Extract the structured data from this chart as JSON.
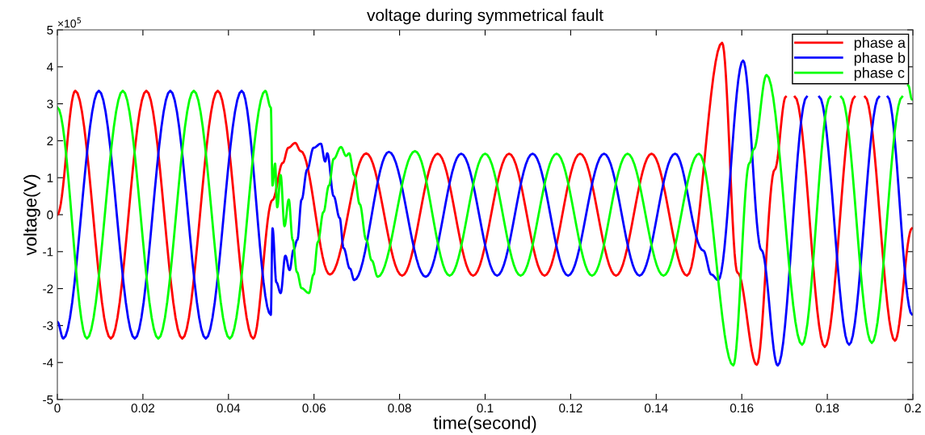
{
  "chart_data": {
    "type": "line",
    "title": "voltage during symmetrical fault",
    "xlabel": "time(second)",
    "ylabel": "voltage(V)",
    "annotations": [
      "×10$^{5}$"
    ],
    "xlim": [
      0,
      0.2
    ],
    "xticks": [
      0,
      0.02,
      0.04,
      0.06,
      0.08,
      0.1,
      0.12,
      0.14,
      0.16,
      0.18,
      0.2
    ],
    "ylim": [
      -5,
      5
    ],
    "yticks": [
      -5,
      -4,
      -3,
      -2,
      -1,
      0,
      1,
      2,
      3,
      4,
      5
    ],
    "grid": false,
    "legend": "top right",
    "marker": "none",
    "line_style": "solid",
    "series": [
      {
        "name": "phase a",
        "color": "#ff0000",
        "x": [
          0,
          0.0042,
          0.0125,
          0.0208,
          0.0292,
          0.0375,
          0.0458,
          0.0503,
          0.0527,
          0.054,
          0.0556,
          0.0569,
          0.0637,
          0.0722,
          0.0806,
          0.0889,
          0.0972,
          0.1056,
          0.1139,
          0.1222,
          0.1306,
          0.1389,
          0.1472,
          0.1554,
          0.159,
          0.1635,
          0.1677,
          0.1703,
          0.1713,
          0.1724,
          0.1794,
          0.1864,
          0.1876,
          0.1888,
          0.1958,
          0.1998
        ],
        "values": [
          0,
          3.35,
          -3.35,
          3.35,
          -3.35,
          3.35,
          -3.35,
          0.4,
          1.4,
          1.81,
          1.94,
          1.72,
          -1.62,
          1.66,
          -1.65,
          1.65,
          -1.65,
          1.65,
          -1.65,
          1.65,
          -1.65,
          1.65,
          -1.65,
          4.65,
          -1.57,
          -4.06,
          1.22,
          3.19,
          null,
          3.19,
          -3.58,
          3.19,
          null,
          3.19,
          -3.41,
          -0.37
        ]
      },
      {
        "name": "phase b",
        "color": "#0000ff",
        "x": [
          0,
          0.0014,
          0.0097,
          0.0181,
          0.0264,
          0.0347,
          0.0431,
          0.0499,
          0.0503,
          0.0512,
          0.0522,
          0.0533,
          0.0543,
          0.0552,
          0.0561,
          0.0571,
          0.0584,
          0.0599,
          0.0616,
          0.0626,
          0.0631,
          0.0646,
          0.066,
          0.0669,
          0.0684,
          0.0694,
          0.0775,
          0.0861,
          0.0944,
          0.1028,
          0.1111,
          0.1194,
          0.1278,
          0.1361,
          0.1444,
          0.151,
          0.1529,
          0.1545,
          0.1603,
          0.1646,
          0.1684,
          0.1752,
          0.1766,
          0.1781,
          0.1851,
          0.1921,
          0.1931,
          0.1941,
          0.1998
        ],
        "values": [
          -2.9,
          -3.35,
          3.35,
          -3.35,
          3.35,
          -3.35,
          3.35,
          -2.71,
          -0.37,
          -1.83,
          -2.12,
          -1.11,
          -1.5,
          -0.96,
          -0.68,
          0.41,
          1.22,
          1.81,
          1.92,
          1.44,
          1.66,
          0.5,
          -0.09,
          -0.9,
          -1.46,
          -1.77,
          1.7,
          -1.68,
          1.65,
          -1.65,
          1.65,
          -1.65,
          1.65,
          -1.65,
          1.65,
          -0.97,
          -1.62,
          -1.77,
          4.17,
          -0.96,
          -4.08,
          3.19,
          null,
          3.19,
          -3.52,
          3.19,
          null,
          3.19,
          -2.7
        ]
      },
      {
        "name": "phase c",
        "color": "#00ff00",
        "x": [
          0,
          0.0069,
          0.0153,
          0.0236,
          0.0319,
          0.0403,
          0.0486,
          0.0499,
          0.0503,
          0.0509,
          0.0514,
          0.0522,
          0.0531,
          0.0541,
          0.055,
          0.056,
          0.0571,
          0.0588,
          0.0599,
          0.0609,
          0.0622,
          0.0635,
          0.0646,
          0.0663,
          0.0675,
          0.0682,
          0.0694,
          0.0707,
          0.0722,
          0.0735,
          0.0749,
          0.0836,
          0.0917,
          0.1,
          0.1083,
          0.1167,
          0.125,
          0.1333,
          0.1417,
          0.15,
          0.158,
          0.1618,
          0.1628,
          0.1658,
          0.1741,
          0.1807,
          0.182,
          0.1832,
          0.1904,
          0.1975,
          0.1982,
          0.1989,
          0.1998
        ],
        "values": [
          2.9,
          -3.35,
          3.35,
          -3.35,
          3.35,
          -3.35,
          3.35,
          2.9,
          0.79,
          1.38,
          0.2,
          1.07,
          -0.31,
          0.41,
          -0.68,
          -1.55,
          -1.99,
          -2.12,
          -1.62,
          -0.74,
          0.07,
          0.79,
          1.51,
          1.83,
          1.59,
          1.66,
          1.07,
          0.28,
          -0.68,
          -1.24,
          -1.68,
          1.72,
          -1.65,
          1.65,
          -1.65,
          1.65,
          -1.65,
          1.65,
          -1.65,
          1.65,
          -4.08,
          1.4,
          1.77,
          3.78,
          -3.52,
          3.19,
          null,
          3.19,
          -3.47,
          3.19,
          null,
          3.5,
          3.12
        ]
      }
    ]
  }
}
